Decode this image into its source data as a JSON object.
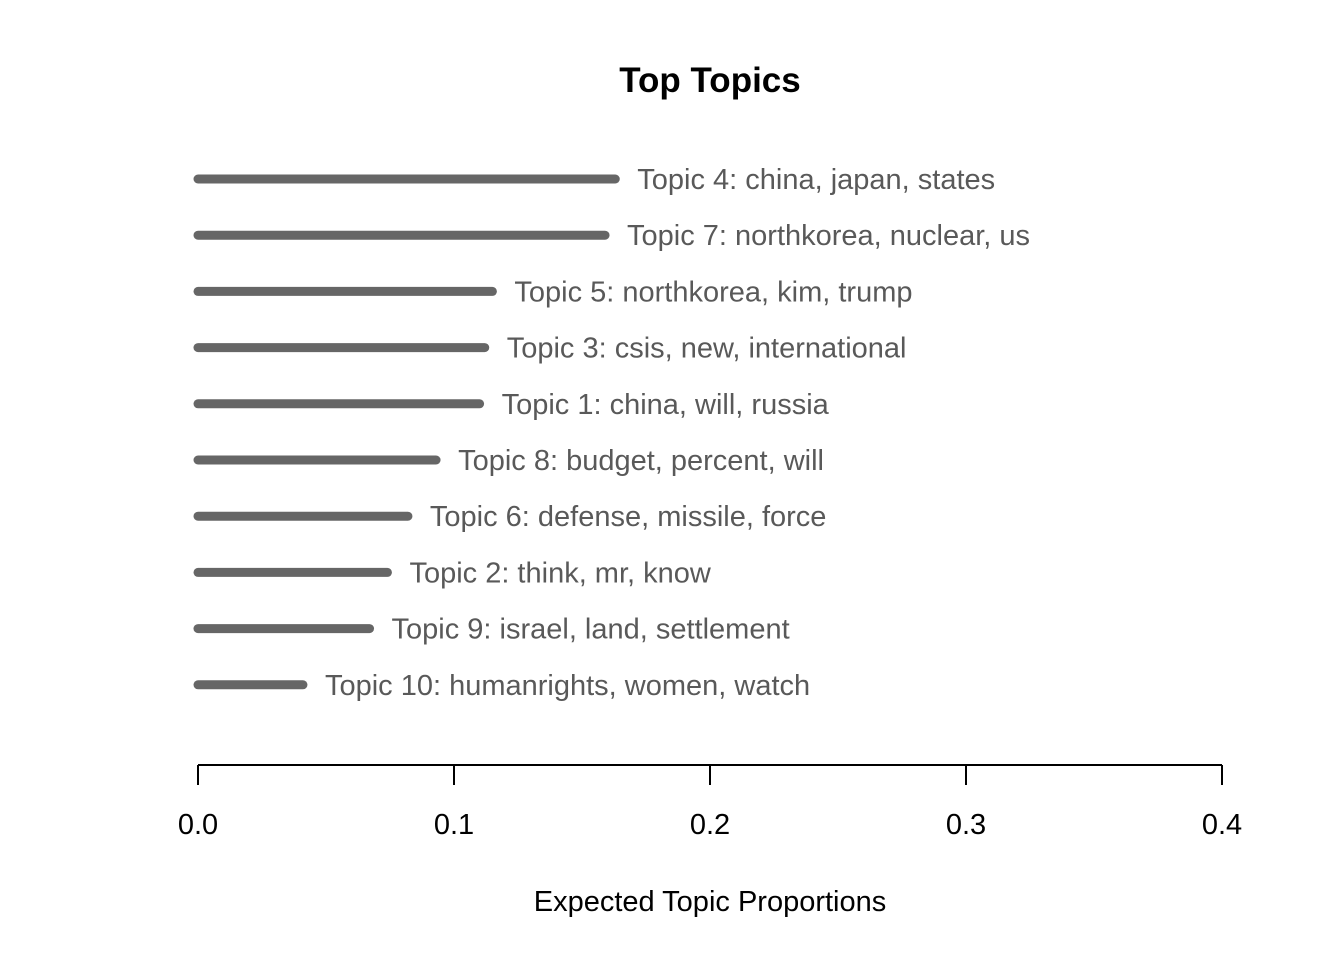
{
  "chart_data": {
    "type": "bar",
    "orientation": "horizontal",
    "title": "Top Topics",
    "xlabel": "Expected Topic Proportions",
    "ylabel": "",
    "xlim": [
      0,
      0.4
    ],
    "xticks": [
      {
        "value": 0.0,
        "label": "0.0"
      },
      {
        "value": 0.1,
        "label": "0.1"
      },
      {
        "value": 0.2,
        "label": "0.2"
      },
      {
        "value": 0.3,
        "label": "0.3"
      },
      {
        "value": 0.4,
        "label": "0.4"
      }
    ],
    "grid": false,
    "legend": "none",
    "bar_color": "#666666",
    "categories": [
      "Topic 4: china, japan, states",
      "Topic 7: northkorea, nuclear, us",
      "Topic 5: northkorea, kim, trump",
      "Topic 3: csis, new, international",
      "Topic 1: china, will, russia",
      "Topic 8: budget, percent, will",
      "Topic 6: defense, missile, force",
      "Topic 2: think, mr, know",
      "Topic 9: israel, land, settlement",
      "Topic 10: humanrights, women, watch"
    ],
    "values": [
      0.163,
      0.159,
      0.115,
      0.112,
      0.11,
      0.093,
      0.082,
      0.074,
      0.067,
      0.041
    ]
  }
}
